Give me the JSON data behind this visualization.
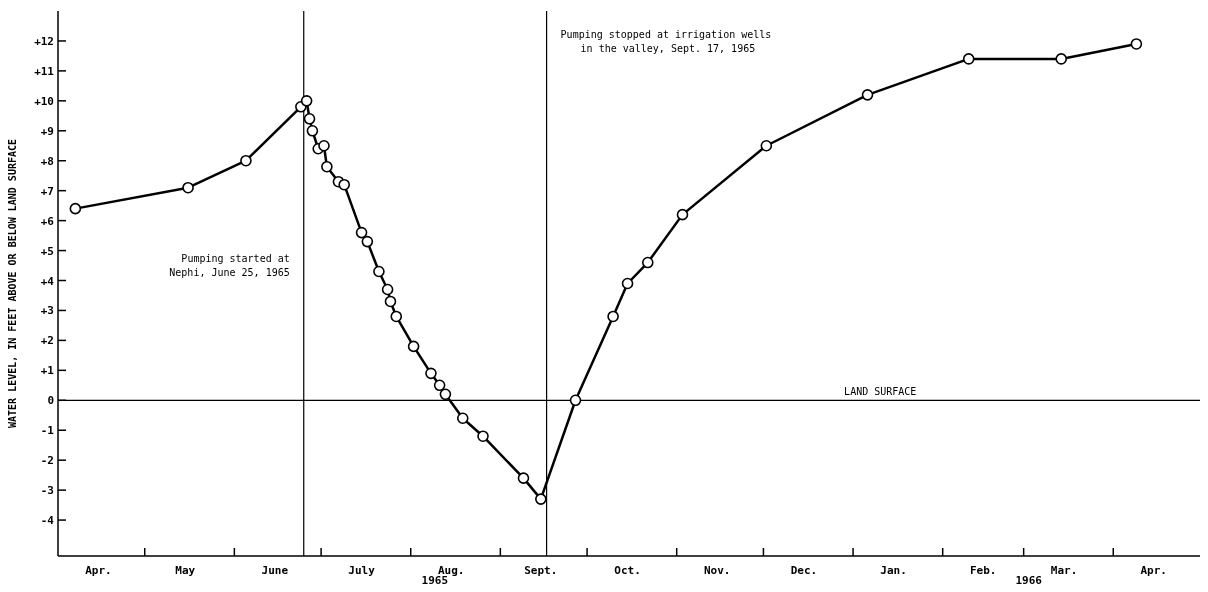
{
  "chart_data": {
    "type": "line",
    "ylabel": "WATER LEVEL, IN FEET ABOVE OR BELOW LAND SURFACE",
    "x": [
      "1965-04-07",
      "1965-05-16",
      "1965-06-05",
      "1965-06-24",
      "1965-06-26",
      "1965-06-27",
      "1965-06-28",
      "1965-06-30",
      "1965-07-02",
      "1965-07-03",
      "1965-07-07",
      "1965-07-09",
      "1965-07-15",
      "1965-07-17",
      "1965-07-21",
      "1965-07-24",
      "1965-07-25",
      "1965-07-27",
      "1965-08-02",
      "1965-08-08",
      "1965-08-11",
      "1965-08-13",
      "1965-08-19",
      "1965-08-26",
      "1965-09-09",
      "1965-09-15",
      "1965-09-27",
      "1965-10-10",
      "1965-10-15",
      "1965-10-22",
      "1965-11-03",
      "1965-12-02",
      "1966-01-06",
      "1966-02-10",
      "1966-03-14",
      "1966-04-09"
    ],
    "series": [
      {
        "color": "#000000",
        "values": [
          6.4,
          7.1,
          8.0,
          9.8,
          10.0,
          9.4,
          9.0,
          8.4,
          8.5,
          7.8,
          7.3,
          7.2,
          5.6,
          5.3,
          4.3,
          3.7,
          3.3,
          2.8,
          1.8,
          0.9,
          0.5,
          0.2,
          -0.6,
          -1.2,
          -2.6,
          -3.3,
          0.0,
          2.8,
          3.9,
          4.6,
          6.2,
          8.5,
          10.2,
          11.4,
          11.4,
          11.9
        ]
      }
    ],
    "marker": "circle",
    "line_style": "solid",
    "xlim": [
      "1965-04-01",
      "1966-05-01"
    ],
    "xticks": [
      {
        "value": "1965-05-01",
        "label": null
      },
      {
        "value": "1965-06-01",
        "label": null
      },
      {
        "value": "1965-07-01",
        "label": null
      },
      {
        "value": "1965-08-01",
        "label": null
      },
      {
        "value": "1965-09-01",
        "label": null
      },
      {
        "value": "1965-10-01",
        "label": null
      },
      {
        "value": "1965-11-01",
        "label": null
      },
      {
        "value": "1965-12-01",
        "label": null
      },
      {
        "value": "1966-01-01",
        "label": null
      },
      {
        "value": "1966-02-01",
        "label": null
      },
      {
        "value": "1966-03-01",
        "label": null
      },
      {
        "value": "1966-04-01",
        "label": null
      },
      {
        "value": "1965-04-15",
        "label": "Apr."
      },
      {
        "value": "1965-05-15",
        "label": "May"
      },
      {
        "value": "1965-06-15",
        "label": "June"
      },
      {
        "value": "1965-07-15",
        "label": "July"
      },
      {
        "value": "1965-08-15",
        "label": "Aug."
      },
      {
        "value": "1965-09-15",
        "label": "Sept."
      },
      {
        "value": "1965-10-15",
        "label": "Oct."
      },
      {
        "value": "1965-11-15",
        "label": "Nov."
      },
      {
        "value": "1965-12-15",
        "label": "Dec."
      },
      {
        "value": "1966-01-15",
        "label": "Jan."
      },
      {
        "value": "1966-02-15",
        "label": "Feb."
      },
      {
        "value": "1966-03-15",
        "label": "Mar."
      },
      {
        "value": "1966-04-15",
        "label": "Apr."
      }
    ],
    "ylim": [
      -5.2,
      13
    ],
    "yticks": [
      -4,
      -3,
      -2,
      -1,
      0,
      {
        "value": 1,
        "label": "+1"
      },
      {
        "value": 2,
        "label": "+2"
      },
      {
        "value": 3,
        "label": "+3"
      },
      {
        "value": 4,
        "label": "+4"
      },
      {
        "value": 5,
        "label": "+5"
      },
      {
        "value": 6,
        "label": "+6"
      },
      {
        "value": 7,
        "label": "+7"
      },
      {
        "value": 8,
        "label": "+8"
      },
      {
        "value": 9,
        "label": "+9"
      },
      {
        "value": 10,
        "label": "+10"
      },
      {
        "value": 11,
        "label": "+11"
      },
      {
        "value": 12,
        "label": "+12"
      }
    ],
    "ref_lines": [
      {
        "axis": "y",
        "value": 0,
        "label": "LAND SURFACE",
        "color": "#000000"
      },
      {
        "axis": "x",
        "value": "1965-06-25",
        "label": "Pumping started at\nNephi, June 25, 1965",
        "color": "#000000"
      },
      {
        "axis": "x",
        "value": "1965-09-17",
        "label": "Pumping stopped at irrigation wells\nin the valley, Sept. 17, 1965",
        "color": "#000000"
      }
    ],
    "annotations": [
      "1965",
      "1966"
    ]
  }
}
